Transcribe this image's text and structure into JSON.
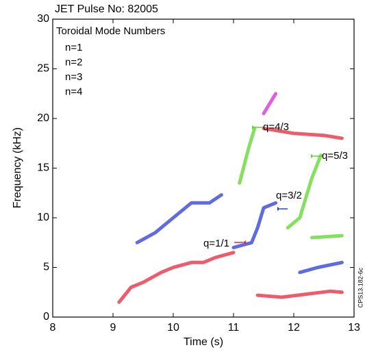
{
  "chart_data": {
    "type": "spectrogram",
    "title": "JET Pulse No: 82005",
    "legend_title": "Toroidal Mode Numbers",
    "xlabel": "Time (s)",
    "ylabel": "Frequency (kHz)",
    "side_note": "CPS13.182-6c",
    "xlim": [
      8,
      13
    ],
    "ylim": [
      0,
      30
    ],
    "xticks": [
      8,
      9,
      10,
      11,
      12,
      13
    ],
    "yticks": [
      0,
      5,
      10,
      15,
      20,
      25,
      30
    ],
    "series": [
      {
        "name": "n=1",
        "color": "#e8263a",
        "x": [
          9.1,
          9.3,
          9.5,
          9.8,
          10.0,
          10.3,
          10.5,
          10.7,
          11.0,
          null,
          11.4,
          11.8,
          12.2,
          12.6,
          12.8,
          null,
          11.5,
          12.0,
          12.5,
          12.8
        ],
        "values": [
          1.5,
          3.0,
          3.5,
          4.5,
          5.0,
          5.5,
          5.5,
          6.0,
          6.5,
          null,
          2.2,
          2.0,
          2.3,
          2.6,
          2.5,
          null,
          19.0,
          18.5,
          18.3,
          18.0
        ]
      },
      {
        "name": "n=2",
        "color": "#2a3bd6",
        "x": [
          9.4,
          9.7,
          10.0,
          10.3,
          10.6,
          10.8,
          null,
          11.0,
          11.3,
          11.4,
          11.5,
          11.7,
          null,
          12.1,
          12.4,
          12.8
        ],
        "values": [
          7.5,
          8.5,
          10.0,
          11.5,
          11.5,
          12.3,
          null,
          7.0,
          7.5,
          9.0,
          11.0,
          11.5,
          null,
          4.5,
          5.0,
          5.5
        ]
      },
      {
        "name": "n=3",
        "color": "#5cd62a",
        "x": [
          11.1,
          11.25,
          11.35,
          null,
          11.9,
          12.1,
          12.3,
          12.45,
          null,
          12.3,
          12.8
        ],
        "values": [
          13.5,
          17.0,
          19.0,
          null,
          9.0,
          10.0,
          14.0,
          16.3,
          null,
          8.0,
          8.2
        ]
      },
      {
        "name": "n=4",
        "color": "#d62ad6",
        "x": [
          11.5,
          11.7
        ],
        "values": [
          20.5,
          22.5
        ]
      }
    ],
    "annotations": [
      {
        "text": "q=1/1",
        "color": "#e8263a"
      },
      {
        "text": "q=4/3",
        "color": "#5cd62a"
      },
      {
        "text": "q=5/3",
        "color": "#5cd62a"
      },
      {
        "text": "q=3/2",
        "color": "#2a3bd6"
      }
    ]
  }
}
